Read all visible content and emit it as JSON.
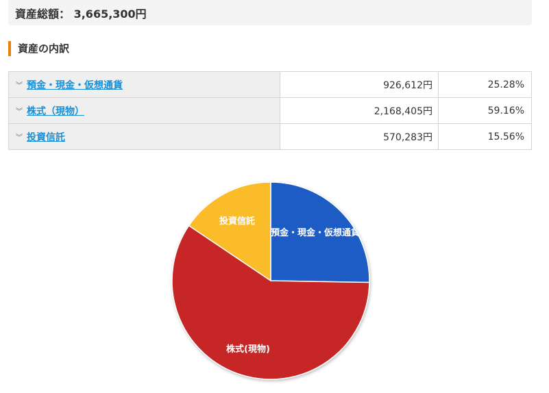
{
  "summary": {
    "label": "資産総額：",
    "value": "3,665,300円"
  },
  "section_title": "資産の内訳",
  "rows": [
    {
      "name": "預金・現金・仮想通貨",
      "amount": "926,612円",
      "percent": "25.28%"
    },
    {
      "name": "株式（現物）",
      "amount": "2,168,405円",
      "percent": "59.16%"
    },
    {
      "name": "投資信託",
      "amount": "570,283円",
      "percent": "15.56%"
    }
  ],
  "chart_data": {
    "type": "pie",
    "slices": [
      {
        "label": "預金・現金・仮想通貨",
        "value": 25.28,
        "color": "#1f5bc4"
      },
      {
        "label": "株式(現物)",
        "value": 59.16,
        "color": "#c62828"
      },
      {
        "label": "投資信託",
        "value": 15.56,
        "color": "#fbbc2c"
      }
    ]
  },
  "colors": {
    "accent": "#e8820c",
    "link": "#1a8fd6"
  }
}
